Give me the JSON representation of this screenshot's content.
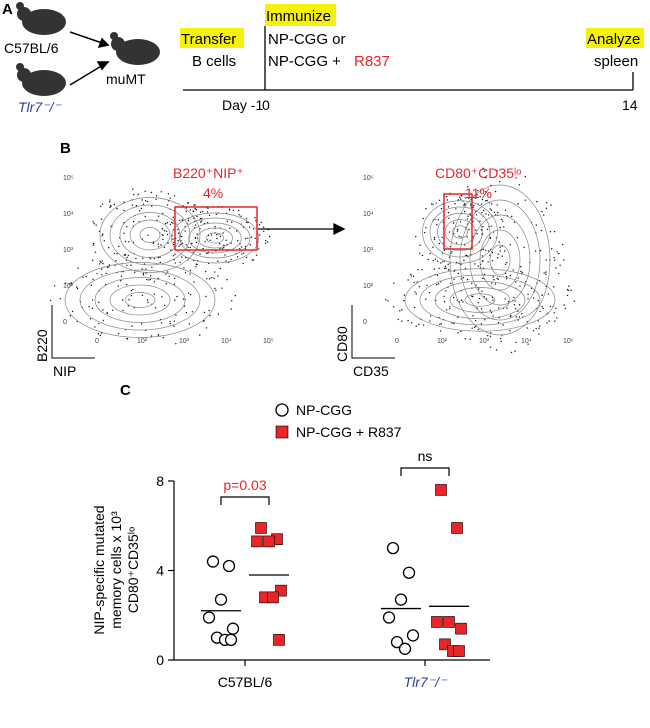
{
  "panel_a": {
    "label": "A",
    "strains": [
      "C57BL/6",
      "Tlr7⁻/⁻"
    ],
    "recipient": "muMT",
    "steps": [
      {
        "title": "Transfer",
        "text": [
          "B cells"
        ]
      },
      {
        "title": "Immunize",
        "text": [
          "NP-CGG or",
          "NP-CGG +"
        ],
        "highlight": "R837"
      },
      {
        "title": "Analyze",
        "text": [
          "spleen"
        ]
      }
    ],
    "timeline": [
      "Day -1",
      "0",
      "14"
    ]
  },
  "panel_b": {
    "label": "B",
    "plots": [
      {
        "gate_label": "B220⁺NIP⁺",
        "gate_percent": "4%",
        "ylabel": "B220",
        "xlabel": "NIP",
        "yticks": [
          "10⁵",
          "10⁴",
          "10³",
          "10²",
          "0"
        ],
        "xticks": [
          "0",
          "10²",
          "10³",
          "10⁴",
          "10⁵"
        ]
      },
      {
        "gate_label": "CD80⁺CD35ˡᵒ",
        "gate_percent": "11%",
        "ylabel": "CD80",
        "xlabel": "CD35",
        "yticks": [
          "10⁵",
          "10⁴",
          "10³",
          "10²",
          "0"
        ],
        "xticks": [
          "0",
          "10²",
          "10³",
          "10⁴",
          "10⁵"
        ]
      }
    ]
  },
  "panel_c_label": "C",
  "chart_data": {
    "type": "dot",
    "ylabel": [
      "NIP-specific mutated",
      "memory cells x 10³",
      "CD80⁺CD35ˡᵒ"
    ],
    "categories": [
      "C57BL/6",
      "Tlr7⁻/⁻"
    ],
    "series": [
      {
        "name": "NP-CGG",
        "color": "#ffffff",
        "marker": "circle",
        "values": [
          [
            4.4,
            4.2,
            2.7,
            1.9,
            1.4,
            1.0,
            0.9,
            0.9
          ],
          [
            5.0,
            3.9,
            2.7,
            1.9,
            1.1,
            0.8,
            0.5
          ]
        ],
        "means": [
          2.2,
          2.3
        ]
      },
      {
        "name": "NP-CGG + R837",
        "color": "#e8262a",
        "marker": "square",
        "values": [
          [
            5.9,
            5.4,
            5.3,
            5.3,
            3.1,
            2.8,
            2.8,
            0.9
          ],
          [
            7.6,
            5.9,
            1.7,
            1.7,
            1.4,
            0.7,
            0.4,
            0.4
          ]
        ],
        "means": [
          3.8,
          2.4
        ]
      }
    ],
    "ylim": [
      0,
      8
    ],
    "yticks": [
      0,
      4,
      8
    ],
    "annotations": [
      {
        "text": "p=0.03",
        "color": "#e8262a"
      },
      {
        "text": "ns",
        "color": "#000000"
      }
    ]
  }
}
